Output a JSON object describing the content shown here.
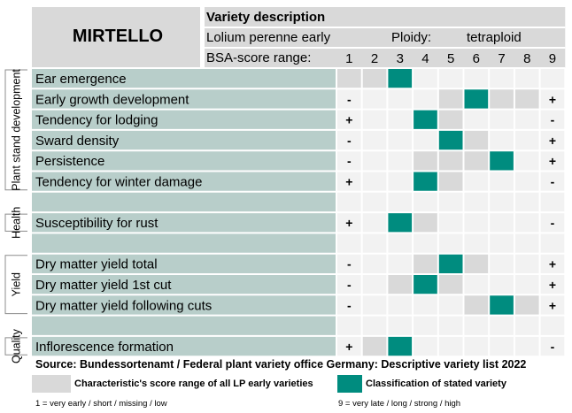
{
  "variety": {
    "name": "MIRTELLO",
    "header_title": "Variety description",
    "species": "Lolium perenne early",
    "ploidy_label": "Ploidy:",
    "ploidy_value": "tetraploid",
    "score_label": "BSA-score range:"
  },
  "score_scale": [
    1,
    2,
    3,
    4,
    5,
    6,
    7,
    8,
    9
  ],
  "groups": [
    {
      "label": "Plant stand development",
      "rows": [
        0,
        5
      ]
    },
    {
      "label": "Health",
      "rows": [
        7,
        7
      ]
    },
    {
      "label": "Yield",
      "rows": [
        9,
        11
      ]
    },
    {
      "label": "Quality",
      "rows": [
        13,
        13
      ]
    }
  ],
  "chart_data": {
    "type": "table",
    "title": "Variety description",
    "columns": [
      "1",
      "2",
      "3",
      "4",
      "5",
      "6",
      "7",
      "8",
      "9"
    ],
    "rows": [
      {
        "label": "Ear emergence",
        "range": [
          1,
          2
        ],
        "score": 3,
        "low": "",
        "high": ""
      },
      {
        "label": "Early growth development",
        "range": [
          5,
          8
        ],
        "score": 6,
        "low": "-",
        "high": "+"
      },
      {
        "label": "Tendency for lodging",
        "range": [
          4,
          5
        ],
        "score": 4,
        "low": "+",
        "high": "-"
      },
      {
        "label": "Sward density",
        "range": [
          5,
          6
        ],
        "score": 5,
        "low": "-",
        "high": "+"
      },
      {
        "label": "Persistence",
        "range": [
          4,
          7
        ],
        "score": 7,
        "low": "-",
        "high": "+"
      },
      {
        "label": "Tendency for winter damage",
        "range": [
          4,
          5
        ],
        "score": 4,
        "low": "+",
        "high": "-"
      },
      {
        "label": "",
        "range": null,
        "score": null,
        "low": "",
        "high": ""
      },
      {
        "label": "Susceptibility for rust",
        "range": [
          3,
          4
        ],
        "score": 3,
        "low": "+",
        "high": "-"
      },
      {
        "label": "",
        "range": null,
        "score": null,
        "low": "",
        "high": ""
      },
      {
        "label": "Dry matter yield total",
        "range": [
          4,
          6
        ],
        "score": 5,
        "low": "-",
        "high": "+"
      },
      {
        "label": "Dry matter yield 1st cut",
        "range": [
          3,
          5
        ],
        "score": 4,
        "low": "-",
        "high": "+"
      },
      {
        "label": "Dry matter yield following cuts",
        "range": [
          6,
          8
        ],
        "score": 7,
        "low": "-",
        "high": "+"
      },
      {
        "label": "",
        "range": null,
        "score": null,
        "low": "",
        "high": ""
      },
      {
        "label": "Inflorescence formation",
        "range": [
          2,
          3
        ],
        "score": 3,
        "low": "+",
        "high": "-"
      }
    ]
  },
  "source": "Source: Bundessortenamt / Federal plant variety office Germany: Descriptive variety list 2022",
  "legend": {
    "range_label": "Characteristic's score range of all LP early varieties",
    "variety_label": "Classification of stated variety",
    "scale_low": "1 = very early / short / missing / low",
    "scale_high": "9 = very late / long / strong / high"
  },
  "colors": {
    "highlight": "#008C7F",
    "range": "#D9D9D9",
    "label_bg": "#B8CECA",
    "header_bg": "#D9D9D9",
    "empty_cell": "#F2F2F2"
  }
}
